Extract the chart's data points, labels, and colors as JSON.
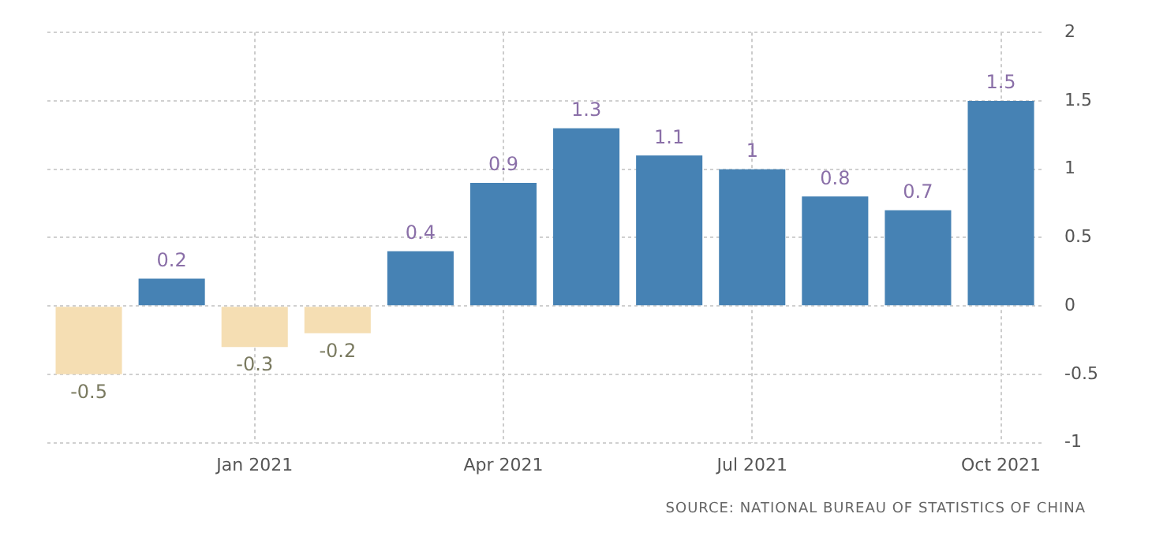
{
  "chart_data": {
    "type": "bar",
    "categories": [
      null,
      null,
      "Jan 2021",
      null,
      null,
      "Apr 2021",
      null,
      null,
      "Jul 2021",
      null,
      null,
      "Oct 2021"
    ],
    "values": [
      -0.5,
      0.2,
      -0.3,
      -0.2,
      0.4,
      0.9,
      1.3,
      1.1,
      1,
      0.8,
      0.7,
      1.5
    ],
    "colors": [
      "#f5deb3",
      "#4682b4",
      "#f5deb3",
      "#f5deb3",
      "#4682b4",
      "#4682b4",
      "#4682b4",
      "#4682b4",
      "#4682b4",
      "#4682b4",
      "#4682b4",
      "#4682b4"
    ],
    "ylim": [
      -1,
      2
    ],
    "yticks": [
      -1,
      -0.5,
      0,
      0.5,
      1,
      1.5,
      2
    ],
    "grid": true,
    "data_labels": true,
    "legend": false,
    "annotations": [
      "SOURCE: NATIONAL BUREAU OF STATISTICS OF CHINA"
    ]
  }
}
